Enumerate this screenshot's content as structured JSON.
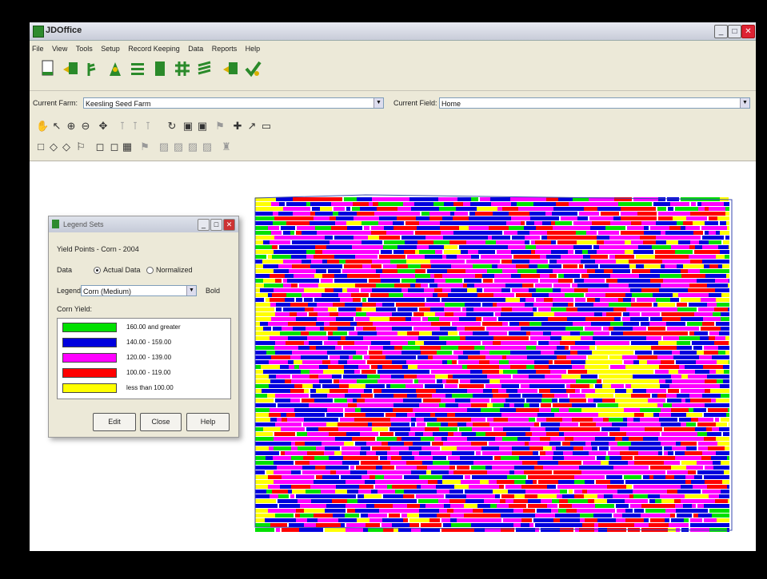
{
  "app": {
    "title": "JDOffice"
  },
  "menu": [
    "File",
    "View",
    "Tools",
    "Setup",
    "Record Keeping",
    "Data",
    "Reports",
    "Help"
  ],
  "farm_bar": {
    "farm_label": "Current Farm:",
    "farm_value": "Keesling Seed Farm",
    "field_label": "Current Field:",
    "field_value": "Home"
  },
  "legend_dialog": {
    "title": "Legend Sets",
    "subtitle": "Yield Points - Corn - 2004",
    "data_label": "Data",
    "opt_actual": "Actual Data",
    "opt_normalized": "Normalized",
    "legend_label": "Legend:",
    "legend_value": "Corn (Medium)",
    "bold_label": "Bold",
    "yield_label": "Corn Yield:",
    "ranges": [
      {
        "label": "160.00 and greater",
        "color": "#00e000"
      },
      {
        "label": "140.00 - 159.00",
        "color": "#0000dd"
      },
      {
        "label": "120.00 - 139.00",
        "color": "#ff00ff"
      },
      {
        "label": "100.00 - 119.00",
        "color": "#ff0000"
      },
      {
        "label": "less than 100.00",
        "color": "#ffff00"
      }
    ],
    "buttons": {
      "edit": "Edit",
      "close": "Close",
      "help": "Help"
    }
  }
}
